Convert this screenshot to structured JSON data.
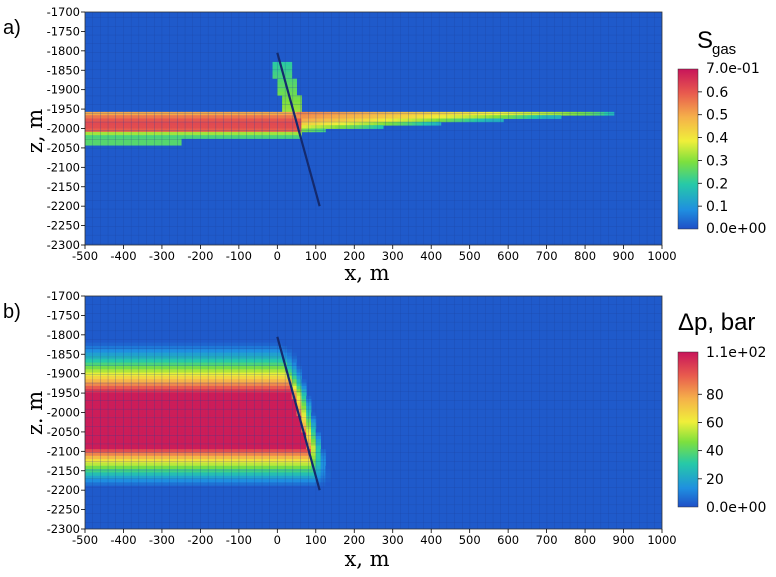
{
  "chart_data": [
    {
      "type": "heatmap",
      "panel_label": "a)",
      "xlabel": "x, m",
      "ylabel": "z, m",
      "xlim": [
        -500,
        1000
      ],
      "ylim": [
        -2300,
        -1700
      ],
      "xticks": [
        -500,
        -400,
        -300,
        -200,
        -100,
        0,
        100,
        200,
        300,
        400,
        500,
        600,
        700,
        800,
        900,
        1000
      ],
      "yticks": [
        -1700,
        -1750,
        -1800,
        -1850,
        -1900,
        -1950,
        -2000,
        -2050,
        -2100,
        -2150,
        -2200,
        -2250,
        -2300
      ],
      "grid": true,
      "colorbar": {
        "title": "S",
        "title_sub": "gas",
        "range": [
          0,
          0.7
        ],
        "max_label": "7.0e-01",
        "min_label": "0.0e+00",
        "tick_labels": [
          "0.6",
          "0.5",
          "0.4",
          "0.3",
          "0.2",
          "0.1"
        ],
        "tick_values": [
          0.6,
          0.5,
          0.4,
          0.3,
          0.2,
          0.1
        ]
      },
      "fault": {
        "top": [
          0,
          -1805
        ],
        "bottom": [
          110,
          -2200
        ]
      },
      "features": [
        {
          "region": "gas layer left of fault",
          "x": [
            -500,
            50
          ],
          "z": [
            -2030,
            -1960
          ],
          "value": 0.55
        },
        {
          "region": "gas layer right of fault (thinning)",
          "x": [
            50,
            870
          ],
          "z": [
            -1990,
            -1960
          ],
          "value": 0.5
        },
        {
          "region": "gas along fault",
          "x": [
            20,
            80
          ],
          "z": [
            -1990,
            -1830
          ],
          "value": 0.35
        }
      ]
    },
    {
      "type": "heatmap",
      "panel_label": "b)",
      "xlabel": "x, m",
      "ylabel": "z. m",
      "xlim": [
        -500,
        1000
      ],
      "ylim": [
        -2300,
        -1700
      ],
      "xticks": [
        -500,
        -400,
        -300,
        -200,
        -100,
        0,
        100,
        200,
        300,
        400,
        500,
        600,
        700,
        800,
        900,
        1000
      ],
      "yticks": [
        -1700,
        -1750,
        -1800,
        -1850,
        -1900,
        -1950,
        -2000,
        -2050,
        -2100,
        -2150,
        -2200,
        -2250,
        -2300
      ],
      "grid": true,
      "colorbar": {
        "title": "Δp, bar",
        "range": [
          0,
          110
        ],
        "max_label": "1.1e+02",
        "min_label": "0.0e+00",
        "tick_labels": [
          "80",
          "60",
          "40",
          "20"
        ],
        "tick_values": [
          80,
          60,
          40,
          20
        ]
      },
      "fault": {
        "top": [
          0,
          -1805
        ],
        "bottom": [
          110,
          -2200
        ]
      },
      "features": [
        {
          "region": "high pressure left of fault",
          "x": [
            -500,
            70
          ],
          "z": [
            -2090,
            -1950
          ],
          "value": 105
        },
        {
          "region": "pressure gradient above reservoir",
          "x": [
            -500,
            60
          ],
          "z": [
            -1950,
            -1810
          ],
          "value": 50
        },
        {
          "region": "pressure gradient below reservoir",
          "x": [
            -500,
            70
          ],
          "z": [
            -2190,
            -2090
          ],
          "value": 50
        }
      ]
    }
  ]
}
